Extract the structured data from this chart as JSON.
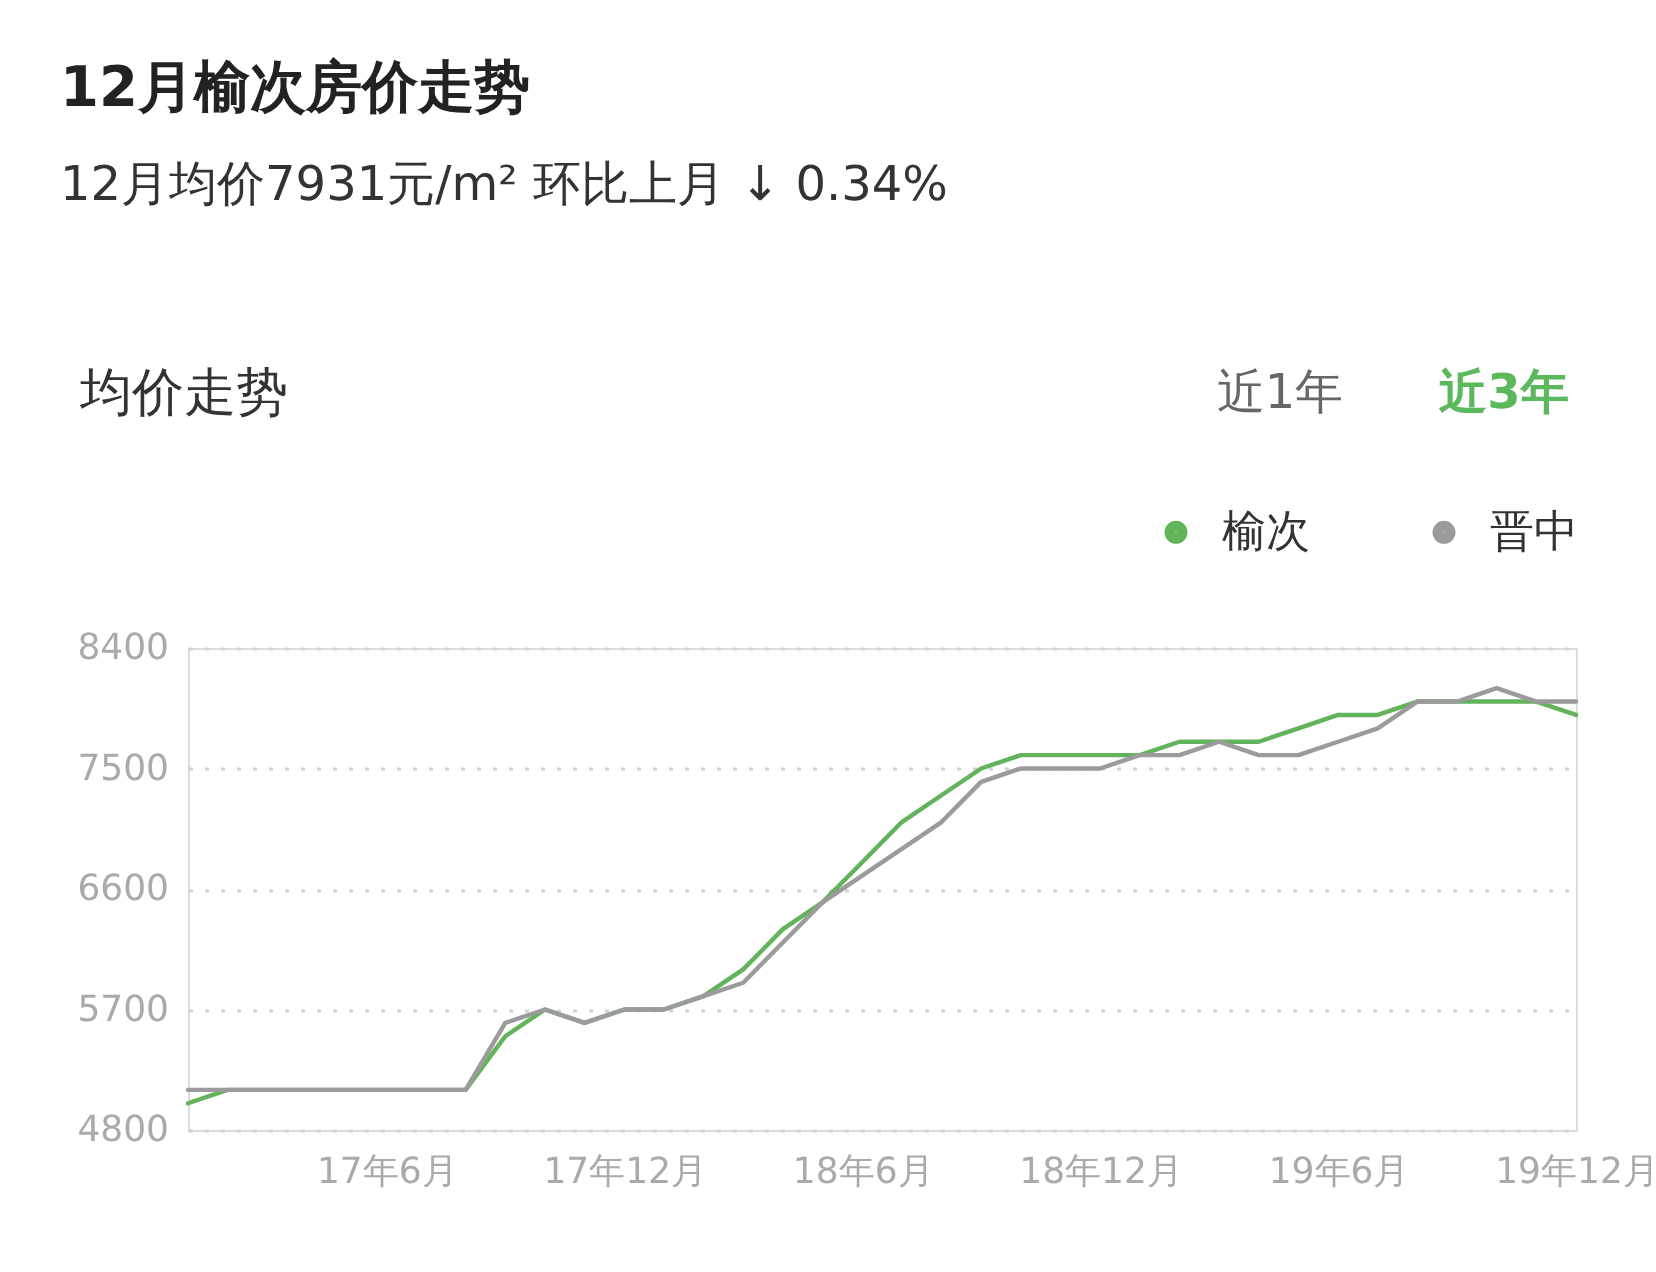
{
  "chart_data": {
    "type": "line",
    "title": "12月榆次房价走势",
    "subtitle": "12月均价7931元/m²  环比上月 ↓ 0.34%",
    "annotations": [
      "均价走势",
      "近1年",
      "近3年"
    ],
    "categories": [
      null,
      null,
      null,
      null,
      null,
      "17年6月",
      null,
      null,
      null,
      null,
      null,
      "17年12月",
      null,
      null,
      null,
      null,
      null,
      "18年6月",
      null,
      null,
      null,
      null,
      null,
      "18年12月",
      null,
      null,
      null,
      null,
      null,
      "19年6月",
      null,
      null,
      null,
      null,
      null,
      "19年12月"
    ],
    "series": [
      {
        "name": "榆次",
        "color": "#62b35c",
        "values": [
          5000,
          5100,
          5100,
          5100,
          5100,
          5100,
          5100,
          5100,
          5500,
          5700,
          5600,
          5700,
          5700,
          5800,
          6000,
          6300,
          6500,
          6800,
          7100,
          7300,
          7500,
          7600,
          7600,
          7600,
          7600,
          7700,
          7700,
          7700,
          7800,
          7900,
          7900,
          8000,
          8000,
          8000,
          8000,
          7900
        ]
      },
      {
        "name": "晋中",
        "color": "#9b9b9b",
        "values": [
          5100,
          5100,
          5100,
          5100,
          5100,
          5100,
          5100,
          5100,
          5600,
          5700,
          5600,
          5700,
          5700,
          5800,
          5900,
          6200,
          6500,
          6700,
          6900,
          7100,
          7400,
          7500,
          7500,
          7500,
          7600,
          7600,
          7700,
          7600,
          7600,
          7700,
          7800,
          8000,
          8000,
          8100,
          8000,
          8000
        ]
      }
    ],
    "ylim": [
      4800,
      8400
    ],
    "yticks": [
      4800,
      5700,
      6600,
      7500,
      8400
    ],
    "grid": "y",
    "legend": "top right",
    "marker": "none",
    "line_style": "solid"
  }
}
